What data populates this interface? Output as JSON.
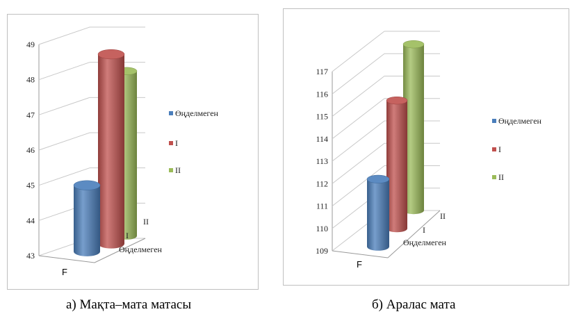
{
  "chart_data": [
    {
      "type": "bar",
      "style": "3d-cylinder",
      "categories": [
        "F"
      ],
      "depth_labels": [
        "Өңделмеген",
        "I",
        "II"
      ],
      "series": [
        {
          "name": "Өңделмеген",
          "values": [
            45.0
          ],
          "color": "#4a7ebb"
        },
        {
          "name": "I",
          "values": [
            48.5
          ],
          "color": "#c0504d"
        },
        {
          "name": "II",
          "values": [
            47.8
          ],
          "color": "#9bbb59"
        }
      ],
      "ylim": [
        43,
        49
      ],
      "yticks": [
        "43",
        "44",
        "45",
        "46",
        "47",
        "48",
        "49"
      ],
      "grid": true,
      "legend": "right",
      "caption": "а) Мақта–мата матасы"
    },
    {
      "type": "bar",
      "style": "3d-cylinder",
      "categories": [
        "F"
      ],
      "depth_labels": [
        "Өңделмеген",
        "I",
        "II"
      ],
      "series": [
        {
          "name": "Өңделмеген",
          "values": [
            112.2
          ],
          "color": "#4a7ebb"
        },
        {
          "name": "I",
          "values": [
            114.9
          ],
          "color": "#c0504d"
        },
        {
          "name": "II",
          "values": [
            116.6
          ],
          "color": "#9bbb59"
        }
      ],
      "ylim": [
        109,
        117
      ],
      "yticks": [
        "109",
        "110",
        "111",
        "112",
        "113",
        "114",
        "115",
        "116",
        "117"
      ],
      "grid": true,
      "legend": "right",
      "caption": "б) Аралас мата"
    }
  ]
}
